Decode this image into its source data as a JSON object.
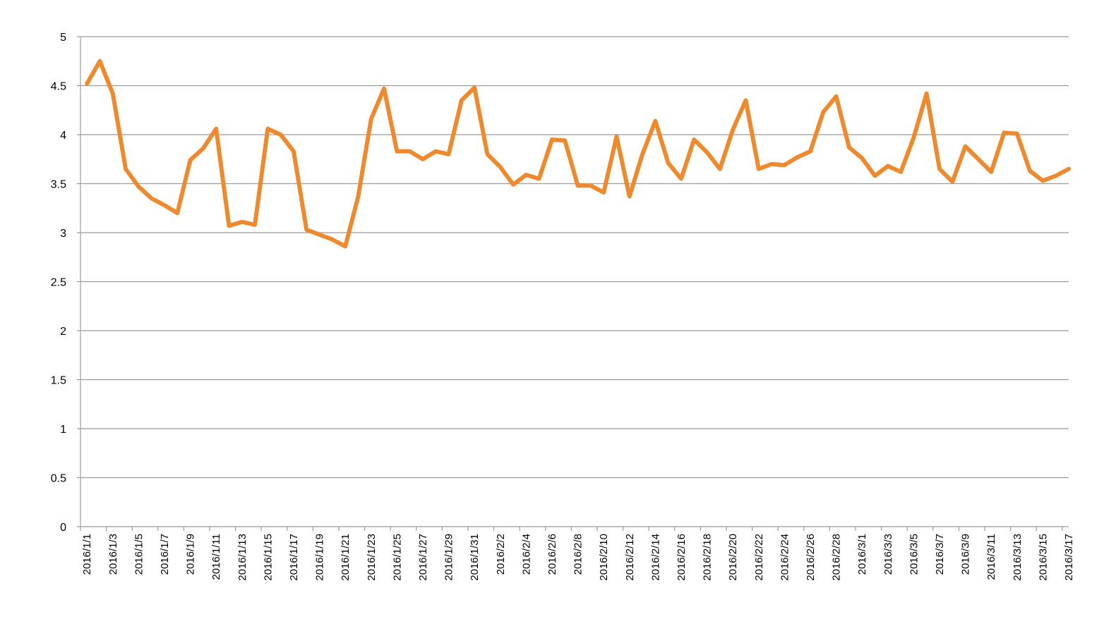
{
  "chart_data": {
    "type": "line",
    "title": "",
    "xlabel": "",
    "ylabel": "",
    "ylim": [
      0,
      5
    ],
    "yticks": [
      0,
      0.5,
      1,
      1.5,
      2,
      2.5,
      3,
      3.5,
      4,
      4.5,
      5
    ],
    "ytick_labels": [
      "0",
      "0.5",
      "1",
      "1.5",
      "2",
      "2.5",
      "3",
      "3.5",
      "4",
      "4.5",
      "5"
    ],
    "grid": true,
    "legend": "none",
    "colors": {
      "line": "#EE8A2D",
      "grid": "#9B9B9B",
      "axis": "#9B9B9B"
    },
    "x": [
      "2016/1/1",
      "2016/1/2",
      "2016/1/3",
      "2016/1/4",
      "2016/1/5",
      "2016/1/6",
      "2016/1/7",
      "2016/1/8",
      "2016/1/9",
      "2016/1/10",
      "2016/1/11",
      "2016/1/12",
      "2016/1/13",
      "2016/1/14",
      "2016/1/15",
      "2016/1/16",
      "2016/1/17",
      "2016/1/18",
      "2016/1/19",
      "2016/1/20",
      "2016/1/21",
      "2016/1/22",
      "2016/1/23",
      "2016/1/24",
      "2016/1/25",
      "2016/1/26",
      "2016/1/27",
      "2016/1/28",
      "2016/1/29",
      "2016/1/30",
      "2016/1/31",
      "2016/2/1",
      "2016/2/2",
      "2016/2/3",
      "2016/2/4",
      "2016/2/5",
      "2016/2/6",
      "2016/2/7",
      "2016/2/8",
      "2016/2/9",
      "2016/2/10",
      "2016/2/11",
      "2016/2/12",
      "2016/2/13",
      "2016/2/14",
      "2016/2/15",
      "2016/2/16",
      "2016/2/17",
      "2016/2/18",
      "2016/2/19",
      "2016/2/20",
      "2016/2/21",
      "2016/2/22",
      "2016/2/23",
      "2016/2/24",
      "2016/2/25",
      "2016/2/26",
      "2016/2/27",
      "2016/2/28",
      "2016/2/29",
      "2016/3/1",
      "2016/3/2",
      "2016/3/3",
      "2016/3/4",
      "2016/3/5",
      "2016/3/6",
      "2016/3/7",
      "2016/3/8",
      "2016/3/9",
      "2016/3/10",
      "2016/3/11",
      "2016/3/12",
      "2016/3/13",
      "2016/3/14",
      "2016/3/15",
      "2016/3/16",
      "2016/3/17"
    ],
    "tick_labels": [
      "2016/1/1",
      "2016/1/3",
      "2016/1/5",
      "2016/1/7",
      "2016/1/9",
      "2016/1/11",
      "2016/1/13",
      "2016/1/15",
      "2016/1/17",
      "2016/1/19",
      "2016/1/21",
      "2016/1/23",
      "2016/1/25",
      "2016/1/27",
      "2016/1/29",
      "2016/1/31",
      "2016/2/2",
      "2016/2/4",
      "2016/2/6",
      "2016/2/8",
      "2016/2/10",
      "2016/2/12",
      "2016/2/14",
      "2016/2/16",
      "2016/2/18",
      "2016/2/20",
      "2016/2/22",
      "2016/2/24",
      "2016/2/26",
      "2016/2/28",
      "2016/3/1",
      "2016/3/3",
      "2016/3/5",
      "2016/3/7",
      "2016/3/9",
      "2016/3/11",
      "2016/3/13",
      "2016/3/15",
      "2016/3/17"
    ],
    "series": [
      {
        "values": [
          4.52,
          4.75,
          4.42,
          3.65,
          3.47,
          3.35,
          3.28,
          3.2,
          3.74,
          3.86,
          4.06,
          3.07,
          3.11,
          3.08,
          4.06,
          4.0,
          3.83,
          3.03,
          2.98,
          2.93,
          2.86,
          3.37,
          4.16,
          4.47,
          3.83,
          3.83,
          3.75,
          3.83,
          3.8,
          4.35,
          4.48,
          3.8,
          3.67,
          3.49,
          3.59,
          3.55,
          3.95,
          3.94,
          3.48,
          3.48,
          3.41,
          3.98,
          3.37,
          3.8,
          4.14,
          3.71,
          3.55,
          3.95,
          3.82,
          3.65,
          4.05,
          4.35,
          3.65,
          3.7,
          3.69,
          3.77,
          3.83,
          4.23,
          4.39,
          3.87,
          3.76,
          3.58,
          3.68,
          3.62,
          3.97,
          4.42,
          3.65,
          3.52,
          3.88,
          3.75,
          3.62,
          4.02,
          4.01,
          3.63,
          3.53,
          3.58,
          3.65
        ]
      }
    ]
  }
}
